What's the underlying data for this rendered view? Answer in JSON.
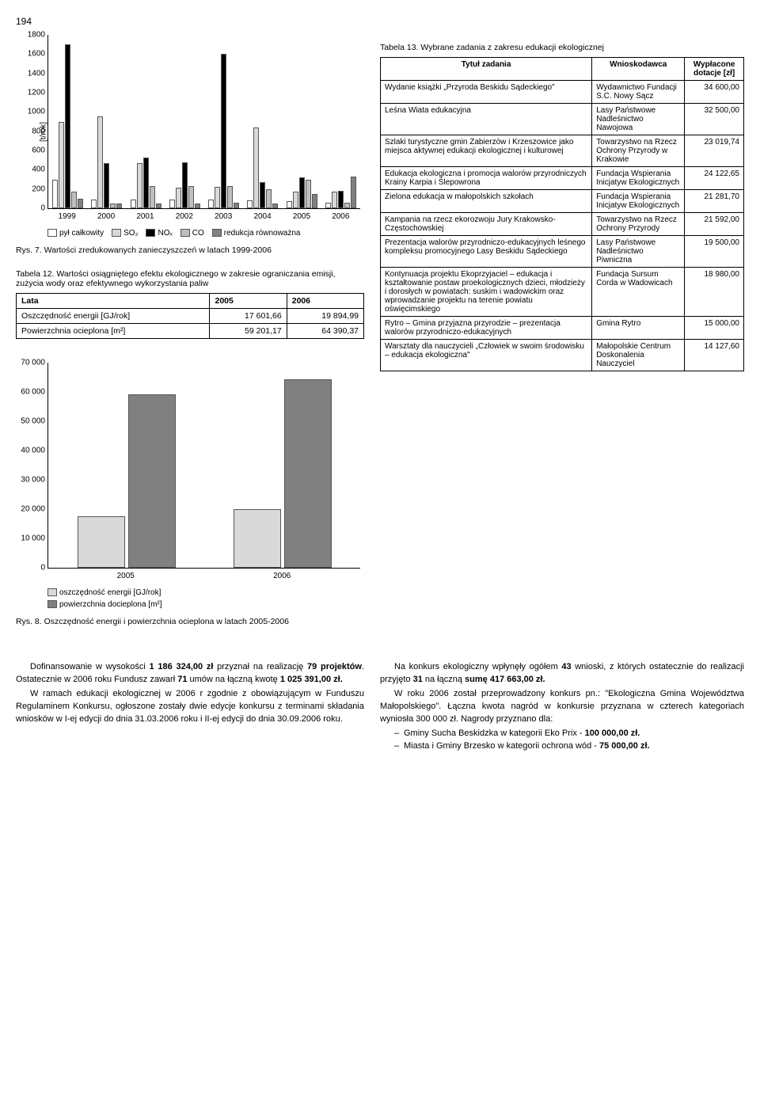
{
  "page_number": "194",
  "fig7": {
    "type": "bar",
    "ylabel": "[t/rok]",
    "ylim": [
      0,
      1800
    ],
    "ytick_step": 200,
    "years": [
      "1999",
      "2000",
      "2001",
      "2002",
      "2003",
      "2004",
      "2005",
      "2006"
    ],
    "series": [
      {
        "name": "pył całkowity",
        "color": "#ffffff",
        "values": [
          300,
          90,
          90,
          90,
          90,
          80,
          70,
          60
        ]
      },
      {
        "name": "SO₂",
        "color": "#d9d9d9",
        "values": [
          900,
          950,
          470,
          210,
          220,
          840,
          170,
          170
        ]
      },
      {
        "name": "NOₓ",
        "color": "#000000",
        "values": [
          1700,
          470,
          530,
          480,
          1600,
          270,
          320,
          180
        ]
      },
      {
        "name": "CO",
        "color": "#bfbfbf",
        "values": [
          170,
          50,
          230,
          230,
          230,
          200,
          300,
          60
        ]
      },
      {
        "name": "redukcja równoważna",
        "color": "#808080",
        "values": [
          100,
          50,
          50,
          50,
          60,
          50,
          150,
          330
        ]
      }
    ],
    "caption": "Rys. 7. Wartości zredukowanych zanieczyszczeń w latach 1999-2006"
  },
  "table12": {
    "caption": "Tabela 12. Wartości osiągniętego efektu ekologicznego w zakresie ograniczania emisji, zużycia wody oraz efektywnego wykorzystania paliw",
    "header": [
      "Lata",
      "2005",
      "2006"
    ],
    "rows": [
      {
        "label": "Oszczędność energii [GJ/rok]",
        "v1": "17 601,66",
        "v2": "19 894,99"
      },
      {
        "label": "Powierzchnia ocieplona [m²]",
        "v1": "59 201,17",
        "v2": "64 390,37"
      }
    ]
  },
  "fig8": {
    "type": "bar",
    "ylim": [
      0,
      70000
    ],
    "ytick_step": 10000,
    "yticks": [
      "0",
      "10 000",
      "20 000",
      "30 000",
      "40 000",
      "50 000",
      "60 000",
      "70 000"
    ],
    "categories": [
      "2005",
      "2006"
    ],
    "series": [
      {
        "name": "oszczędność energii [GJ/rok]",
        "color": "#d9d9d9",
        "values": [
          17601,
          19894
        ]
      },
      {
        "name": "powierzchnia docieplona [m²]",
        "color": "#808080",
        "values": [
          59201,
          64390
        ]
      }
    ],
    "caption": "Rys. 8. Oszczędność energii i powierzchnia ocieplona w latach 2005-2006"
  },
  "table13": {
    "caption": "Tabela 13. Wybrane zadania z zakresu edukacji ekologicznej",
    "headers": [
      "Tytuł zadania",
      "Wnioskodawca",
      "Wypłacone dotacje [zł]"
    ],
    "rows": [
      {
        "t": "Wydanie książki „Przyroda Beskidu Sądeckiego\"",
        "w": "Wydawnictwo Fundacji S.C. Nowy Sącz",
        "a": "34 600,00"
      },
      {
        "t": "Leśna Wiata edukacyjna",
        "w": "Lasy Państwowe Nadleśnictwo Nawojowa",
        "a": "32 500,00"
      },
      {
        "t": "Szlaki turystyczne gmin Zabierzów i Krzeszowice jako miejsca aktywnej edukacji ekologicznej i kulturowej",
        "w": "Towarzystwo na Rzecz Ochrony Przyrody w Krakowie",
        "a": "23 019,74"
      },
      {
        "t": "Edukacja ekologiczna i promocja walorów przyrodniczych Krainy Karpia i Ślepowrona",
        "w": "Fundacja Wspierania Inicjatyw Ekologicznych",
        "a": "24 122,65"
      },
      {
        "t": "Zielona edukacja w małopolskich szkołach",
        "w": "Fundacja Wspierania Inicjatyw Ekologicznych",
        "a": "21 281,70"
      },
      {
        "t": "Kampania na rzecz ekorozwoju Jury Krakowsko-Częstochowskiej",
        "w": "Towarzystwo na Rzecz Ochrony Przyrody",
        "a": "21 592,00"
      },
      {
        "t": "Prezentacja walorów przyrodniczo-edukacyjnych leśnego kompleksu promocyjnego Lasy Beskidu Sądeckiego",
        "w": "Lasy Państwowe Nadleśnictwo Piwniczna",
        "a": "19 500,00"
      },
      {
        "t": "Kontynuacja projektu Ekoprzyjaciel – edukacja i kształtowanie postaw proekologicznych dzieci, młodzieży i dorosłych w powiatach: suskim i wadowickim oraz wprowadzanie projektu na terenie powiatu oświęcimskiego",
        "w": "Fundacja Sursum Corda w Wadowicach",
        "a": "18 980,00"
      },
      {
        "t": "Rytro – Gmina przyjazna przyrodzie – prezentacja walorów przyrodniczo-edukacyjnych",
        "w": "Gmina Rytro",
        "a": "15 000,00"
      },
      {
        "t": "Warsztaty dla nauczycieli „Człowiek w swoim środowisku – edukacja ekologiczna\"",
        "w": "Małopolskie Centrum Doskonalenia Nauczyciel",
        "a": "14 127,60"
      }
    ]
  },
  "body_left": {
    "p1a": "Dofinansowanie w wysokości ",
    "p1b": "1 186 324,00 zł",
    "p1c": " przyznał na realizację ",
    "p1d": "79 projektów",
    "p1e": ". Ostatecznie w 2006 roku Fundusz zawarł ",
    "p1f": "71",
    "p1g": " umów na łączną kwotę ",
    "p1h": "1 025 391,00 zł.",
    "p2": "W ramach edukacji ekologicznej w 2006 r zgodnie z obowiązującym w Funduszu Regulaminem Konkursu, ogłoszone zostały dwie edycje konkursu z terminami składania wniosków w I-ej edycji do dnia 31.03.2006 roku i II-ej edycji do dnia 30.09.2006 roku."
  },
  "body_right": {
    "p1a": "Na konkurs ekologiczny wpłynęły ogółem ",
    "p1b": "43",
    "p1c": " wnioski, z których ostatecznie do realizacji przyjęto ",
    "p1d": "31",
    "p1e": " na łączną ",
    "p1f": "sumę 417 663,00 zł.",
    "p2": "W roku 2006 został przeprowadzony konkurs pn.: \"Ekologiczna Gmina Województwa Małopolskiego\". Łączna kwota nagród w konkursie przyznana w czterech kategoriach wyniosła 300 000 zł. Nagrody przyznano dla:",
    "li1a": "Gminy Sucha Beskidzka w kategorii Eko Prix - ",
    "li1b": "100 000,00 zł.",
    "li2a": "Miasta i Gminy Brzesko w kategorii ochrona wód - ",
    "li2b": "75 000,00 zł."
  }
}
